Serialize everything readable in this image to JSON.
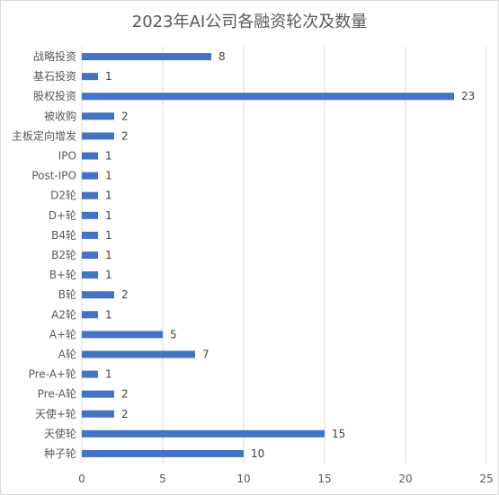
{
  "chart_data": {
    "type": "bar",
    "orientation": "horizontal",
    "title": "2023年AI公司各融资轮次及数量",
    "categories": [
      "战略投资",
      "基石投资",
      "股权投资",
      "被收购",
      "主板定向增发",
      "IPO",
      "Post-IPO",
      "D2轮",
      "D+轮",
      "B4轮",
      "B2轮",
      "B+轮",
      "B轮",
      "A2轮",
      "A+轮",
      "A轮",
      "Pre-A+轮",
      "Pre-A轮",
      "天使+轮",
      "天使轮",
      "种子轮"
    ],
    "values": [
      8,
      1,
      23,
      2,
      2,
      1,
      1,
      1,
      1,
      1,
      1,
      1,
      2,
      1,
      5,
      7,
      1,
      2,
      2,
      15,
      10
    ],
    "xlim": [
      0,
      25
    ],
    "xticks": [
      "0",
      "5",
      "10",
      "15",
      "20",
      "25"
    ],
    "grid": "vertical",
    "legend": "none",
    "bar_color": "#4472c4"
  }
}
